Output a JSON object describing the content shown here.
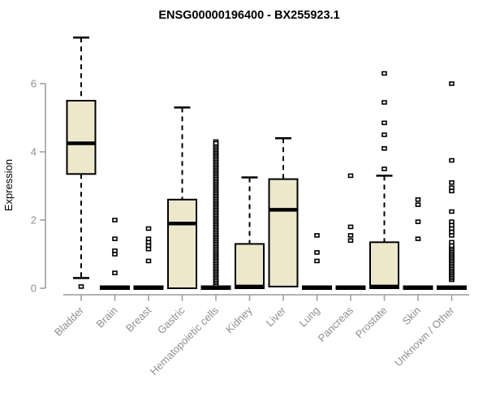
{
  "colors": {
    "box_fill": "#ede7cc",
    "box_stroke": "#000000",
    "median": "#000000",
    "whisker": "#000000",
    "axis": "#9a9a9a",
    "label_gray": "#8f8f8f",
    "title": "#000000",
    "background": "#ffffff"
  },
  "chart_data": {
    "type": "boxplot",
    "title": "ENSG00000196400 - BX255923.1",
    "xlabel": "",
    "ylabel": "Expression",
    "yticks": [
      0,
      2,
      4,
      6
    ],
    "ylim": [
      0,
      7.5
    ],
    "grid": false,
    "legend": "none",
    "categories": [
      "Bladder",
      "Brain",
      "Breast",
      "Gastric",
      "Hematopoietic cells",
      "Kidney",
      "Liver",
      "Lung",
      "Pancreas",
      "Prostate",
      "Skin",
      "Unknown / Other"
    ],
    "series": [
      {
        "label": "Bladder",
        "q1": 3.35,
        "median": 4.25,
        "q3": 5.5,
        "whisker_low": 0.3,
        "whisker_high": 7.35,
        "outliers": [
          0.05
        ]
      },
      {
        "label": "Brain",
        "q1": 0,
        "median": 0,
        "q3": 0,
        "whisker_low": 0,
        "whisker_high": 0,
        "outliers": [
          2.0,
          1.45,
          1.1,
          1.0,
          0.45
        ]
      },
      {
        "label": "Breast",
        "q1": 0,
        "median": 0,
        "q3": 0,
        "whisker_low": 0,
        "whisker_high": 0,
        "outliers": [
          1.75,
          1.45,
          1.35,
          1.25,
          1.15,
          0.8
        ]
      },
      {
        "label": "Gastric",
        "q1": 0,
        "median": 1.9,
        "q3": 2.6,
        "whisker_low": 0,
        "whisker_high": 5.3,
        "outliers": []
      },
      {
        "label": "Hematopoietic cells",
        "q1": 0,
        "median": 0,
        "q3": 0,
        "whisker_low": 0,
        "whisker_high": 0,
        "outliers": [
          4.3
        ],
        "outlier_strip": {
          "from": 0.1,
          "to": 4.25,
          "step": 0.05
        }
      },
      {
        "label": "Kidney",
        "q1": 0,
        "median": 0.05,
        "q3": 1.3,
        "whisker_low": 0,
        "whisker_high": 3.25,
        "outliers": []
      },
      {
        "label": "Liver",
        "q1": 0.05,
        "median": 2.3,
        "q3": 3.2,
        "whisker_low": 0.05,
        "whisker_high": 4.4,
        "outliers": []
      },
      {
        "label": "Lung",
        "q1": 0,
        "median": 0,
        "q3": 0,
        "whisker_low": 0,
        "whisker_high": 0,
        "outliers": [
          1.55,
          1.05,
          0.8
        ]
      },
      {
        "label": "Pancreas",
        "q1": 0,
        "median": 0,
        "q3": 0,
        "whisker_low": 0,
        "whisker_high": 0,
        "outliers": [
          3.3,
          1.8,
          1.55,
          1.4
        ]
      },
      {
        "label": "Prostate",
        "q1": 0,
        "median": 0.05,
        "q3": 1.35,
        "whisker_low": 0,
        "whisker_high": 3.3,
        "outliers": [
          6.3,
          5.45,
          4.85,
          4.5,
          4.1,
          3.5
        ]
      },
      {
        "label": "Skin",
        "q1": 0,
        "median": 0,
        "q3": 0,
        "whisker_low": 0,
        "whisker_high": 0,
        "outliers": [
          2.6,
          2.45,
          1.95,
          1.45
        ]
      },
      {
        "label": "Unknown / Other",
        "q1": 0,
        "median": 0,
        "q3": 0,
        "whisker_low": 0,
        "whisker_high": 0,
        "outliers": [
          6.0,
          3.75,
          3.1,
          2.95,
          2.85,
          2.25,
          1.95,
          1.85,
          1.75,
          1.65,
          1.55,
          1.35,
          0.25
        ],
        "outlier_strip": {
          "from": 0.3,
          "to": 1.25,
          "step": 0.05
        }
      }
    ]
  }
}
